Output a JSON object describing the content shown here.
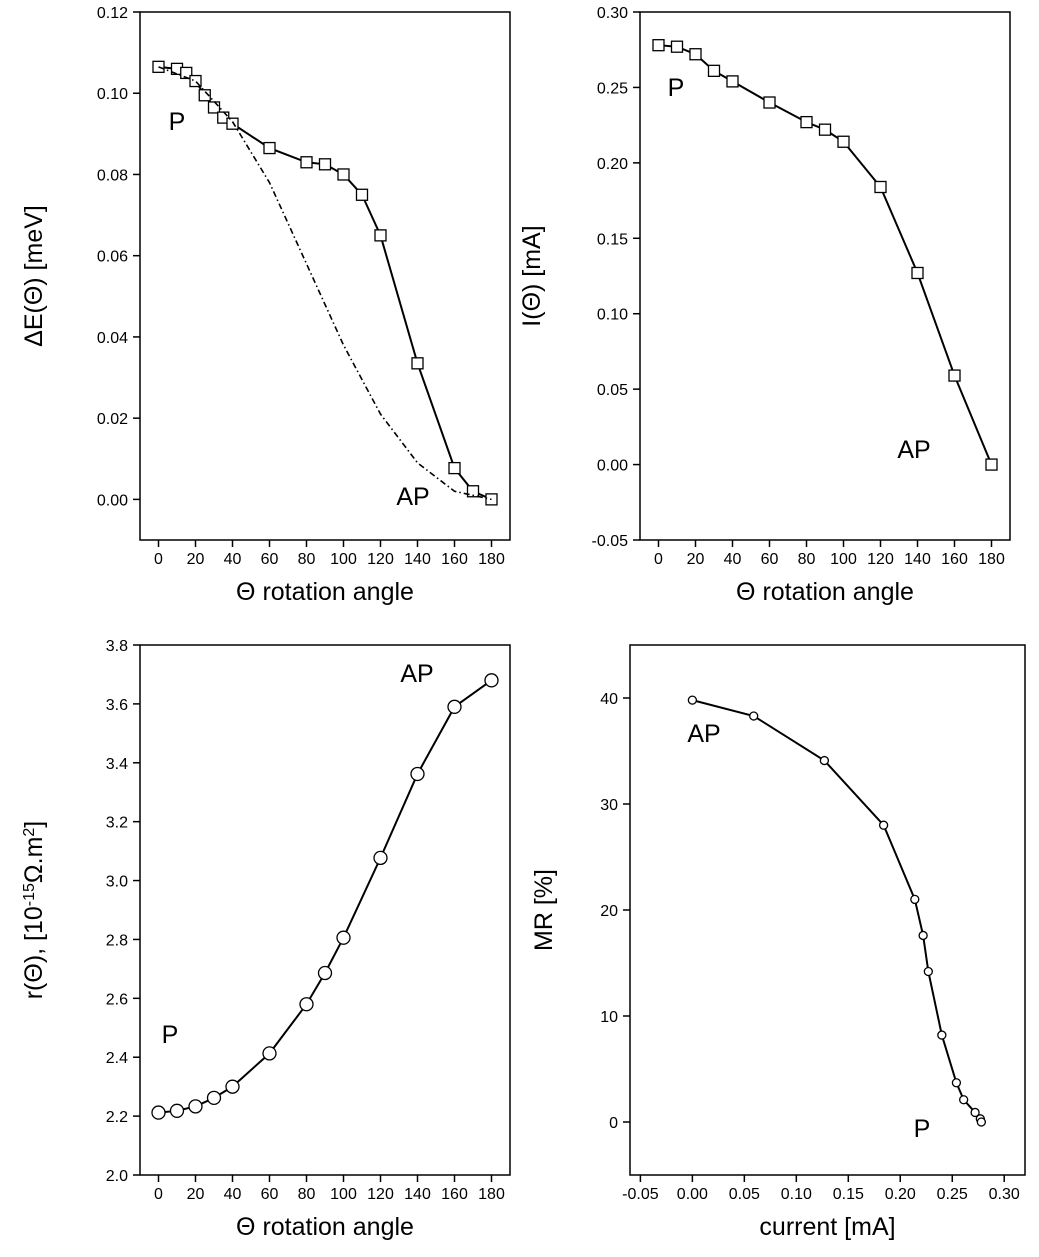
{
  "chart_data": [
    {
      "type": "line",
      "ylabel": "ΔE(Θ)  [meV]",
      "xlabel": "Θ  rotation angle",
      "xlim": [
        -10,
        190
      ],
      "xticks": [
        0,
        20,
        40,
        60,
        80,
        100,
        120,
        140,
        160,
        180
      ],
      "ylim": [
        -0.01,
        0.12
      ],
      "yticks": [
        {
          "value": 0,
          "label": "0.00"
        },
        0.02,
        0.04,
        0.06,
        0.08,
        {
          "value": 0.1,
          "label": "0.10"
        },
        0.12
      ],
      "annotations": [
        "P",
        "AP"
      ],
      "series": [
        {
          "color": "#000000",
          "marker": "square",
          "line": "solid",
          "x": [
            0,
            10,
            15,
            20,
            25,
            30,
            35,
            40,
            60,
            80,
            90,
            100,
            110,
            120,
            140,
            160,
            170,
            180
          ],
          "values": [
            0.1065,
            0.106,
            0.105,
            0.103,
            0.0995,
            0.0965,
            0.094,
            0.0925,
            0.0865,
            0.083,
            0.0825,
            0.08,
            0.075,
            0.065,
            0.0335,
            0.0077,
            0.002,
            0.0
          ]
        },
        {
          "color": "#000000",
          "marker": "none",
          "line": "dashdot",
          "x": [
            0,
            20,
            40,
            60,
            80,
            100,
            120,
            140,
            160,
            180
          ],
          "values": [
            0.1065,
            0.103,
            0.093,
            0.078,
            0.058,
            0.038,
            0.021,
            0.009,
            0.002,
            0.0
          ]
        }
      ]
    },
    {
      "type": "line",
      "ylabel": "I(Θ)  [mA]",
      "xlabel": "Θ  rotation angle",
      "xlim": [
        -10,
        190
      ],
      "xticks": [
        0,
        20,
        40,
        60,
        80,
        100,
        120,
        140,
        160,
        180
      ],
      "ylim": [
        -0.05,
        0.3
      ],
      "yticks": [
        -0.05,
        {
          "value": 0,
          "label": "0.00"
        },
        0.05,
        {
          "value": 0.1,
          "label": "0.10"
        },
        0.15,
        {
          "value": 0.2,
          "label": "0.20"
        },
        0.25,
        {
          "value": 0.3,
          "label": "0.30"
        }
      ],
      "annotations": [
        "P",
        "AP"
      ],
      "series": [
        {
          "color": "#000000",
          "marker": "square",
          "line": "solid",
          "x": [
            0,
            10,
            20,
            30,
            40,
            60,
            80,
            90,
            100,
            120,
            140,
            160,
            180
          ],
          "values": [
            0.278,
            0.277,
            0.272,
            0.261,
            0.254,
            0.24,
            0.227,
            0.222,
            0.214,
            0.184,
            0.127,
            0.059,
            0.0
          ]
        }
      ]
    },
    {
      "type": "line",
      "ylabel": [
        "r(Θ),  [10",
        "-15",
        "Ω.m",
        "2",
        "]"
      ],
      "xlabel": "Θ  rotation angle",
      "xlim": [
        -10,
        190
      ],
      "xticks": [
        0,
        20,
        40,
        60,
        80,
        100,
        120,
        140,
        160,
        180
      ],
      "ylim": [
        2.0,
        3.8
      ],
      "yticks": [
        {
          "value": 2,
          "label": "2.0"
        },
        2.2,
        2.4,
        2.6,
        2.8,
        {
          "value": 3,
          "label": "3.0"
        },
        3.2,
        3.4,
        3.6,
        3.8
      ],
      "annotations": [
        "AP",
        "P"
      ],
      "series": [
        {
          "color": "#000000",
          "marker": "circle",
          "line": "solid",
          "x": [
            0,
            10,
            20,
            30,
            40,
            60,
            80,
            90,
            100,
            120,
            140,
            160,
            180
          ],
          "values": [
            2.212,
            2.218,
            2.233,
            2.262,
            2.3,
            2.413,
            2.58,
            2.686,
            2.806,
            3.077,
            3.362,
            3.59,
            3.68
          ]
        }
      ]
    },
    {
      "type": "line",
      "ylabel": "MR  [%]",
      "xlabel": "current  [mA]",
      "xlim": [
        -0.06,
        0.32
      ],
      "xticks": [
        -0.05,
        {
          "value": 0,
          "label": "0.00"
        },
        0.05,
        {
          "value": 0.1,
          "label": "0.10"
        },
        0.15,
        {
          "value": 0.2,
          "label": "0.20"
        },
        0.25,
        {
          "value": 0.3,
          "label": "0.30"
        }
      ],
      "ylim": [
        -5,
        45
      ],
      "yticks": [
        0,
        10,
        20,
        30,
        40
      ],
      "annotations": [
        "AP",
        "P"
      ],
      "series": [
        {
          "color": "#000000",
          "marker": "circle",
          "line": "solid",
          "x": [
            0.0,
            0.059,
            0.127,
            0.184,
            0.214,
            0.222,
            0.227,
            0.24,
            0.254,
            0.261,
            0.272,
            0.277,
            0.278
          ],
          "values": [
            39.8,
            38.3,
            34.1,
            28.0,
            21.0,
            17.6,
            14.2,
            8.2,
            3.7,
            2.1,
            0.9,
            0.3,
            0.0
          ]
        }
      ]
    }
  ]
}
